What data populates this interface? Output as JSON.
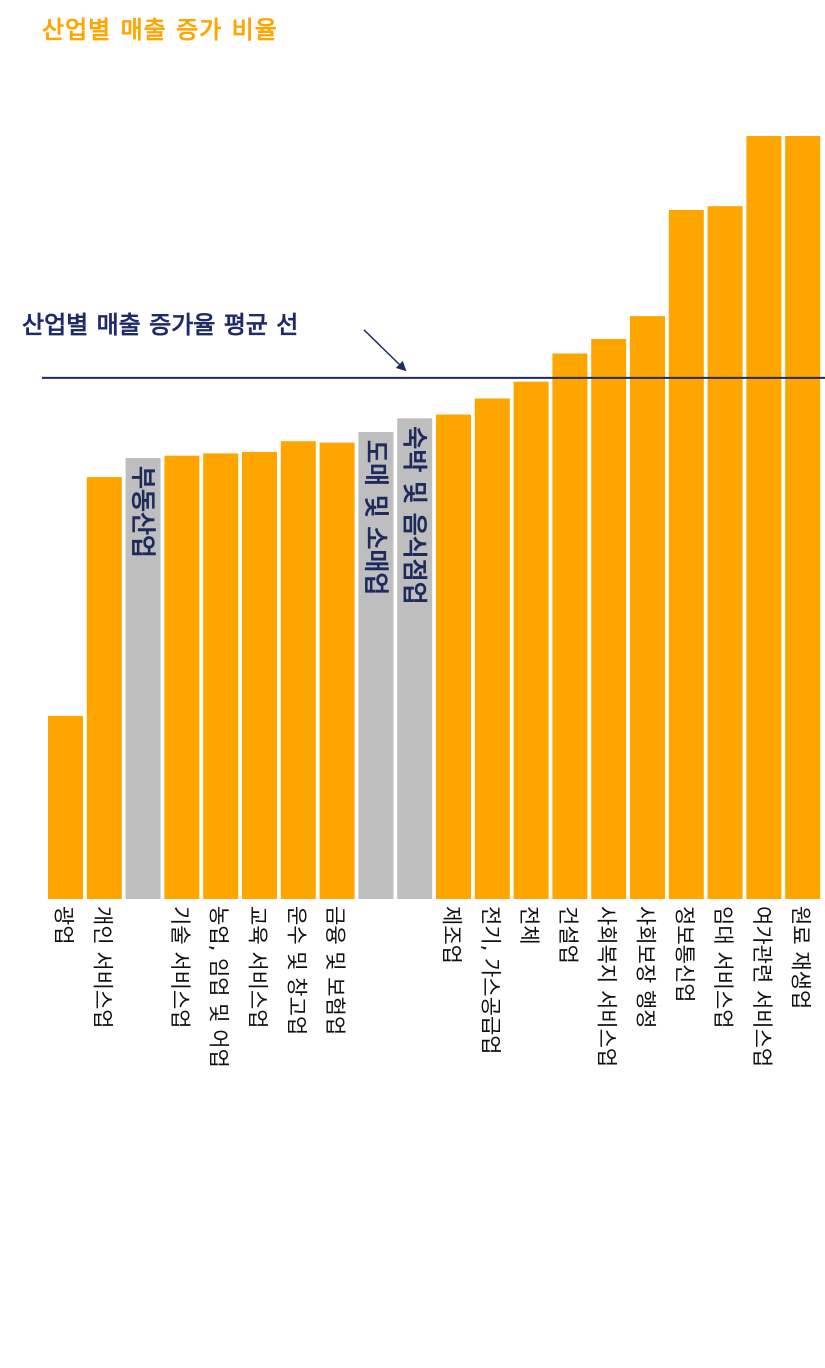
{
  "chart_data": {
    "type": "bar",
    "title": "산업별 매출 증가 비율",
    "xlabel": "",
    "ylabel": "",
    "ylim": [
      0,
      100
    ],
    "grid": false,
    "legend": "none",
    "categories": [
      "광업",
      "개인 서비스업",
      "부동산업",
      "기술 서비스업",
      "농업, 임업 및 어업",
      "교육 서비스업",
      "운수 및 창고업",
      "금융 및 보험업",
      "도매 및 소매업",
      "숙박 및 음식점업",
      "제조업",
      "전기, 가스공급업",
      "전체",
      "건설업",
      "사회복지 서비스업",
      "사회보장 행정",
      "정보통신업",
      "임대 서비스업",
      "여가관련 서비스업",
      "원료 재생업"
    ],
    "x_labels": [
      "광업",
      "개인 서비스업",
      "",
      "기술 서비스업",
      "농업, 임업 및 어업",
      "교육 서비스업",
      "운수 및 창고업",
      "금융 및 보험업",
      "",
      "",
      "제조업",
      "전기, 가스공급업",
      "전체",
      "건설업",
      "사회복지 서비스업",
      "사회보장 행정",
      "정보통신업",
      "임대 서비스업",
      "여가관련 서비스업",
      "원료 재생업"
    ],
    "values": [
      24.0,
      55.3,
      57.8,
      58.1,
      58.4,
      58.6,
      60.0,
      59.8,
      61.2,
      63.0,
      63.5,
      65.6,
      67.8,
      71.5,
      73.4,
      76.4,
      90.3,
      90.8,
      100.0,
      100.0
    ],
    "highlighted": [
      "부동산업",
      "도매 및 소매업",
      "숙박 및 음식점업"
    ],
    "in_bar_labels": [
      {
        "category": "부동산업",
        "text": "부동산업"
      },
      {
        "category": "도매 및 소매업",
        "text": "도매 및 소매업"
      },
      {
        "category": "숙박 및 음식점업",
        "text": "숙박 및 음식점업"
      }
    ],
    "average_line": {
      "value": 68.3,
      "label": "산업별 매출 증가율 평균 선"
    },
    "colors": {
      "bar": "#FFA500",
      "highlight_bar": "#BEBEBE",
      "title": "#FFA500",
      "average_line": "#1F2A6B",
      "in_bar_text": "#1F2A5C",
      "tick_text": "#111111"
    }
  }
}
